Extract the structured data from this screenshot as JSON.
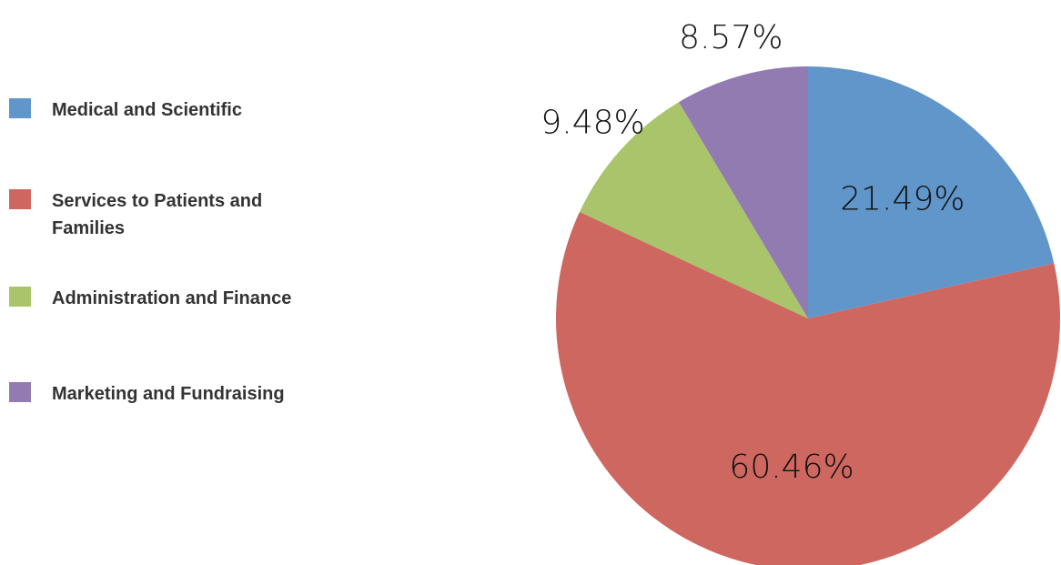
{
  "chart_data": {
    "type": "pie",
    "categories": [
      "Medical and Scientific",
      "Services to Patients and Families",
      "Administration and Finance",
      "Marketing and Fundraising"
    ],
    "values": [
      21.49,
      60.46,
      9.48,
      8.57
    ],
    "value_labels": [
      "21.49%",
      "60.46%",
      "9.48%",
      "8.57%"
    ],
    "colors": [
      "#6096c9",
      "#cf6761",
      "#a9c46a",
      "#927bb1"
    ]
  }
}
